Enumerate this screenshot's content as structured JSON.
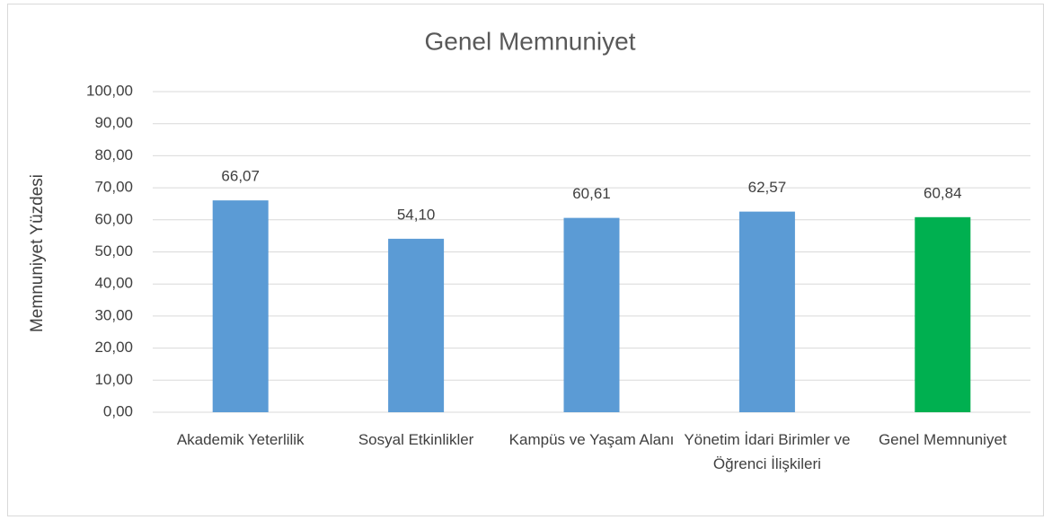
{
  "chart_data": {
    "type": "bar",
    "title": "Genel Memnuniyet",
    "y_label": "Memnuniyet Yüzdesi",
    "categories": [
      "Akademik Yeterlilik",
      "Sosyal Etkinlikler",
      "Kampüs ve Yaşam Alanı",
      "Yönetim İdari Birimler ve Öğrenci İlişkileri",
      "Genel Memnuniyet"
    ],
    "values": [
      66.07,
      54.1,
      60.61,
      62.57,
      60.84
    ],
    "value_labels": [
      "66,07",
      "54,10",
      "60,61",
      "62,57",
      "60,84"
    ],
    "colors": [
      "#5b9bd5",
      "#5b9bd5",
      "#5b9bd5",
      "#5b9bd5",
      "#00b050"
    ],
    "ylim": [
      0,
      100
    ],
    "yticks": [
      {
        "value": 0,
        "label": "0,00"
      },
      {
        "value": 10,
        "label": "10,00"
      },
      {
        "value": 20,
        "label": "20,00"
      },
      {
        "value": 30,
        "label": "30,00"
      },
      {
        "value": 40,
        "label": "40,00"
      },
      {
        "value": 50,
        "label": "50,00"
      },
      {
        "value": 60,
        "label": "60,00"
      },
      {
        "value": 70,
        "label": "70,00"
      },
      {
        "value": 80,
        "label": "80,00"
      },
      {
        "value": 90,
        "label": "90,00"
      },
      {
        "value": 100,
        "label": "100,00"
      }
    ],
    "grid": true
  }
}
